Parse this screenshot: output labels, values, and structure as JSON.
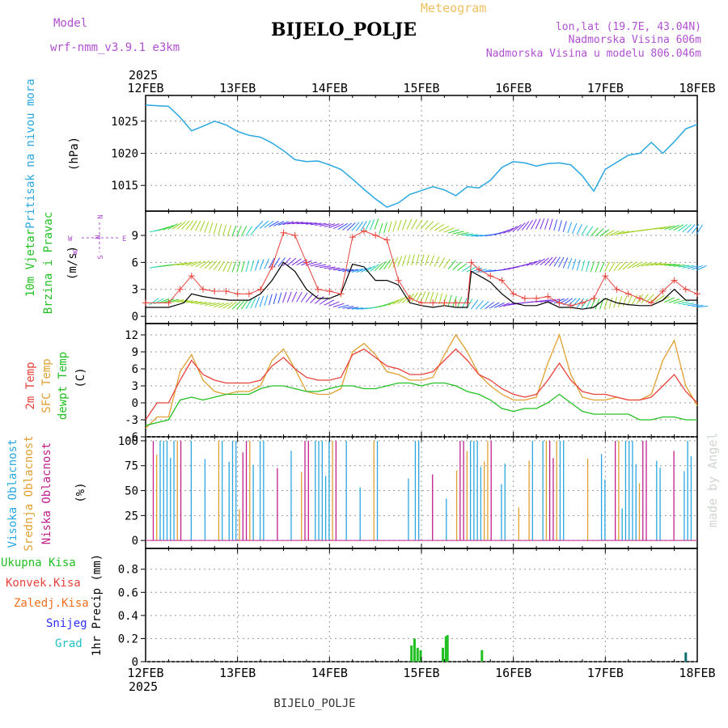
{
  "header": {
    "model_label": "Model",
    "model_name": "wrf-nmm_v3.9.1  e3km",
    "meteogram_label": "Meteogram",
    "station": "BIJELO_POLJE",
    "lonlat": "lon,lat (19.7E, 43.04N)",
    "altitude": "Nadmorska Visina 606m",
    "model_altitude": "Nadmorska Visina u modelu 806.046m",
    "year_top": "2025",
    "year_bottom": "2025",
    "footer_station": "BIJELO_POLJE",
    "watermark": "made by Angel"
  },
  "colors": {
    "pressure": "#2aa7e0",
    "temp2m": "#e8423c",
    "sfc": "#e0a030",
    "dewpt": "#22c022",
    "wind_speed": "#000000",
    "gust": "#e8423c",
    "cloud_high": "#2aa7e0",
    "cloud_mid": "#e0a030",
    "cloud_low": "#c0208c",
    "rain": "#22c022",
    "conv": "#e8423c",
    "frz": "#f07020",
    "snow": "#3030ff",
    "graupel": "#20c0c0",
    "label_purple": "#b050d0",
    "label_orange": "#f0c060"
  },
  "chart_data": {
    "type": "line",
    "x_unit": "hours since 12FEB 00UTC",
    "dates": [
      "12FEB",
      "13FEB",
      "14FEB",
      "15FEB",
      "16FEB",
      "17FEB",
      "18FEB"
    ],
    "xlim": [
      0,
      144
    ],
    "panels": {
      "pressure": {
        "ylabel_lines": [
          "Pritisak na nivou mora"
        ],
        "unit": "(hPa)",
        "ylim": [
          1011,
          1029
        ],
        "ticks": [
          1015,
          1020,
          1025
        ],
        "x": [
          0,
          6,
          9,
          12,
          15,
          18,
          21,
          24,
          27,
          30,
          33,
          36,
          39,
          42,
          45,
          48,
          51,
          54,
          57,
          60,
          63,
          66,
          69,
          72,
          75,
          78,
          81,
          84,
          87,
          90,
          93,
          96,
          99,
          102,
          105,
          108,
          111,
          114,
          117,
          120,
          123,
          126,
          129,
          132,
          135,
          138,
          141,
          144
        ],
        "values": [
          1027.5,
          1027.3,
          1025.6,
          1023.5,
          1024.2,
          1025.0,
          1024.4,
          1023.4,
          1022.8,
          1022.5,
          1021.6,
          1020.4,
          1019.0,
          1018.7,
          1018.8,
          1018.2,
          1017.5,
          1016.0,
          1014.4,
          1012.9,
          1011.6,
          1012.3,
          1013.6,
          1014.2,
          1014.8,
          1014.3,
          1013.4,
          1014.8,
          1014.6,
          1015.8,
          1017.8,
          1018.7,
          1018.5,
          1018.0,
          1018.4,
          1018.5,
          1018.2,
          1016.5,
          1014.1,
          1017.5,
          1018.6,
          1019.7,
          1020.0,
          1021.7,
          1020.0,
          1021.8,
          1023.8,
          1024.5
        ]
      },
      "wind": {
        "ylabel_lines": [
          "10m Vjetar",
          "Brzina i Pravac"
        ],
        "unit": "(m/s)",
        "ylim": [
          -0.8,
          11.7
        ],
        "ticks": [
          0,
          3,
          6,
          9
        ],
        "compass": [
          "N",
          "W",
          "E",
          "S"
        ],
        "speed_x": [
          0,
          6,
          10,
          12,
          15,
          18,
          22,
          24,
          27,
          30,
          33,
          36,
          39,
          42,
          45,
          48,
          51,
          54,
          57,
          60,
          63,
          66,
          69,
          72,
          75,
          78,
          81,
          84,
          85,
          88,
          90,
          93,
          96,
          99,
          102,
          105,
          108,
          111,
          114,
          117,
          120,
          123,
          126,
          129,
          132,
          135,
          138,
          141,
          144
        ],
        "speed": [
          1.0,
          1.0,
          1.5,
          2.5,
          2.2,
          2.0,
          1.8,
          1.8,
          1.8,
          2.5,
          4.0,
          6.0,
          5.0,
          3.0,
          2.0,
          2.0,
          2.5,
          5.8,
          5.5,
          4.0,
          4.0,
          3.5,
          1.5,
          1.2,
          1.0,
          1.2,
          1.0,
          1.0,
          5.0,
          4.3,
          3.8,
          2.5,
          1.5,
          1.2,
          1.2,
          1.6,
          1.0,
          1.0,
          0.8,
          1.0,
          2.0,
          1.5,
          1.3,
          1.2,
          1.2,
          1.8,
          3.0,
          1.8,
          1.8
        ],
        "gust_x": [
          0,
          6,
          9,
          12,
          15,
          18,
          21,
          24,
          27,
          30,
          33,
          36,
          39,
          42,
          45,
          48,
          51,
          54,
          57,
          60,
          63,
          66,
          69,
          72,
          75,
          78,
          81,
          84,
          85,
          87,
          90,
          93,
          96,
          99,
          102,
          105,
          108,
          111,
          114,
          117,
          120,
          123,
          126,
          129,
          132,
          135,
          138,
          141,
          144
        ],
        "gust": [
          1.5,
          1.5,
          3.0,
          4.5,
          3.0,
          2.8,
          2.8,
          2.5,
          2.5,
          3.0,
          5.5,
          9.3,
          9.0,
          6.0,
          3.0,
          2.8,
          2.5,
          8.8,
          9.5,
          9.0,
          8.5,
          4.0,
          2.0,
          1.5,
          1.5,
          1.5,
          1.5,
          1.5,
          6.0,
          5.2,
          4.5,
          4.0,
          2.5,
          2.0,
          2.0,
          2.2,
          1.5,
          1.2,
          1.5,
          2.0,
          4.5,
          3.0,
          2.5,
          2.0,
          1.5,
          2.8,
          4.0,
          3.0,
          2.5
        ]
      },
      "temperature": {
        "ylabel_lines": [
          "2m Temp",
          "SFC Temp",
          "dewpt Temp"
        ],
        "unit": "(C)",
        "ylim": [
          -6,
          14
        ],
        "ticks": [
          -6,
          -3,
          0,
          3,
          6,
          9,
          12
        ],
        "x": [
          0,
          3,
          6,
          9,
          12,
          15,
          18,
          21,
          24,
          27,
          30,
          33,
          36,
          39,
          42,
          45,
          48,
          51,
          54,
          57,
          60,
          63,
          66,
          69,
          72,
          75,
          78,
          81,
          84,
          87,
          90,
          93,
          96,
          99,
          102,
          105,
          108,
          111,
          114,
          117,
          120,
          123,
          126,
          129,
          132,
          135,
          138,
          141,
          144
        ],
        "temp2m": [
          -3.0,
          0.0,
          0.0,
          4.0,
          7.5,
          5.0,
          4.0,
          3.5,
          3.5,
          3.5,
          4.0,
          6.5,
          8.0,
          6.0,
          4.5,
          4.0,
          4.0,
          4.5,
          8.5,
          9.5,
          8.0,
          6.5,
          6.0,
          5.0,
          5.0,
          5.5,
          7.5,
          9.5,
          7.5,
          5.0,
          4.0,
          2.5,
          1.5,
          1.0,
          1.5,
          4.0,
          7.0,
          4.0,
          2.0,
          1.5,
          1.5,
          1.0,
          0.5,
          0.5,
          1.0,
          3.0,
          5.0,
          2.0,
          0.0
        ],
        "sfc": [
          -4.5,
          -2.5,
          -2.5,
          5.5,
          8.5,
          4.0,
          2.0,
          1.5,
          2.0,
          2.0,
          3.0,
          7.5,
          9.5,
          6.0,
          2.0,
          1.5,
          1.5,
          2.5,
          9.0,
          10.5,
          8.5,
          5.5,
          5.0,
          4.0,
          4.0,
          4.5,
          8.5,
          12.0,
          9.0,
          5.0,
          3.0,
          1.5,
          0.5,
          0.5,
          1.0,
          7.0,
          12.0,
          5.0,
          1.0,
          0.5,
          0.5,
          1.0,
          0.5,
          0.5,
          1.5,
          7.5,
          11.0,
          3.0,
          -0.5
        ],
        "dewpt": [
          -4.0,
          -3.5,
          -3.0,
          0.5,
          1.0,
          0.5,
          1.0,
          1.5,
          1.5,
          1.5,
          2.5,
          3.0,
          3.0,
          2.5,
          2.0,
          2.0,
          2.5,
          3.0,
          3.0,
          2.5,
          2.5,
          3.0,
          3.5,
          3.5,
          3.0,
          3.5,
          3.5,
          3.0,
          2.0,
          1.5,
          0.5,
          -1.0,
          -1.5,
          -1.0,
          -1.0,
          0.0,
          1.5,
          0.0,
          -1.5,
          -2.0,
          -2.0,
          -2.0,
          -2.0,
          -3.0,
          -3.0,
          -2.5,
          -2.5,
          -3.0,
          -3.0
        ]
      },
      "clouds": {
        "ylabel_lines": [
          "Visoka Oblacnost",
          "Srednja Oblacnost",
          "Niska Oblacnost"
        ],
        "unit": "(%)",
        "ylim": [
          -8,
          104
        ],
        "ticks": [
          0,
          25,
          50,
          75,
          100
        ]
      },
      "precip": {
        "ylabel_lines": [
          "Ukupna Kisa",
          "Konvek.Kisa",
          "Zaledj.Kisa",
          "Snijeg",
          "Grad",
          "1hr Precip (mm)"
        ],
        "ylim": [
          0,
          0.98
        ],
        "ticks": [
          0,
          0.2,
          0.4,
          0.6,
          0.8
        ],
        "tick_labels": [
          "0",
          "0.2",
          "0.4",
          "0.6",
          "0.8"
        ],
        "rain_bars": [
          [
            69.4,
            0.14
          ],
          [
            70.2,
            0.2
          ],
          [
            71.0,
            0.12
          ],
          [
            71.8,
            0.1
          ],
          [
            77.6,
            0.12
          ],
          [
            78.4,
            0.22
          ],
          [
            78.8,
            0.23
          ],
          [
            87.8,
            0.1
          ]
        ],
        "graupel_bars": [
          [
            141.0,
            0.08
          ]
        ]
      }
    }
  }
}
